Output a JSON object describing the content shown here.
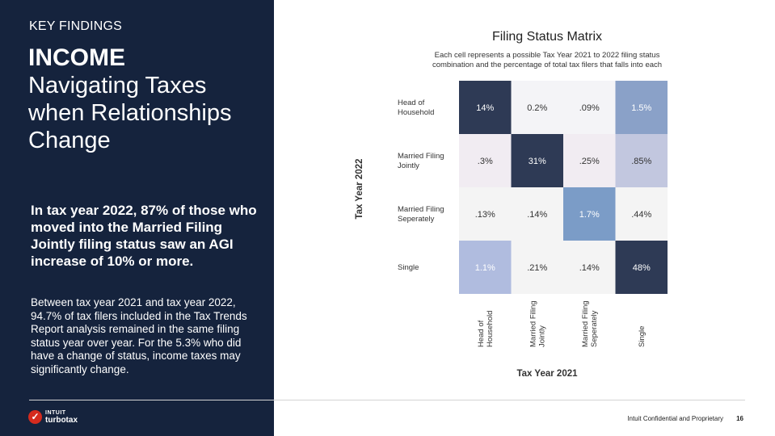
{
  "sidebar": {
    "kicker": "KEY FINDINGS",
    "title_bold": "INCOME",
    "title_rest": "Navigating Taxes when Relationships Change",
    "highlight": "In tax year 2022, 87% of those who moved into the Married Filing Jointly filing status saw an AGI increase of 10% or more.",
    "body": "Between tax year 2021 and tax year 2022, 94.7% of tax filers included in the Tax Trends Report analysis remained in the same filing status year over year. For the 5.3% who did have a change of status, income taxes may significantly change.",
    "logo_line1": "INTUIT",
    "logo_line2": "turbotax"
  },
  "footer": {
    "confidential": "Intuit Confidential and Proprietary",
    "page_number": "16"
  },
  "chart_data": {
    "type": "heatmap",
    "title": "Filing Status Matrix",
    "subtitle_lines": [
      "Each cell represents a possible Tax Year 2021 to 2022 filing status",
      "combination and the percentage of total tax filers that falls into each"
    ],
    "xlabel": "Tax Year 2021",
    "ylabel": "Tax Year 2022",
    "rows": [
      [
        "Head of",
        "Household"
      ],
      [
        "Married Filing",
        "Jointly"
      ],
      [
        "Married Filing",
        "Seperately"
      ],
      [
        "Single"
      ]
    ],
    "cols": [
      [
        "Head of",
        "Household"
      ],
      [
        "Married Filing",
        "Jointly"
      ],
      [
        "Married Filing",
        "Seperately"
      ],
      [
        "Single"
      ]
    ],
    "values": [
      [
        14,
        0.2,
        0.09,
        1.5
      ],
      [
        0.3,
        31,
        0.25,
        0.85
      ],
      [
        0.13,
        0.14,
        1.7,
        0.44
      ],
      [
        1.1,
        0.21,
        0.14,
        48
      ]
    ],
    "labels": [
      [
        "14%",
        "0.2%",
        ".09%",
        "1.5%"
      ],
      [
        ".3%",
        "31%",
        ".25%",
        ".85%"
      ],
      [
        ".13%",
        ".14%",
        "1.7%",
        ".44%"
      ],
      [
        "1.1%",
        ".21%",
        ".14%",
        "48%"
      ]
    ],
    "colors": [
      [
        "#2e3a55",
        "#f4f4f7",
        "#f4f4f7",
        "#8aa1c8"
      ],
      [
        "#f1ecf2",
        "#2e3a55",
        "#f1ecf2",
        "#c2c7df"
      ],
      [
        "#f4f4f4",
        "#f4f4f4",
        "#7b9cc7",
        "#f4f4f4"
      ],
      [
        "#b0bcdf",
        "#f4f4f4",
        "#f4f4f4",
        "#2e3a55"
      ]
    ],
    "text_colors": [
      [
        "#ffffff",
        "#333333",
        "#333333",
        "#ffffff"
      ],
      [
        "#333333",
        "#ffffff",
        "#333333",
        "#333333"
      ],
      [
        "#333333",
        "#333333",
        "#ffffff",
        "#333333"
      ],
      [
        "#ffffff",
        "#333333",
        "#333333",
        "#ffffff"
      ]
    ]
  }
}
